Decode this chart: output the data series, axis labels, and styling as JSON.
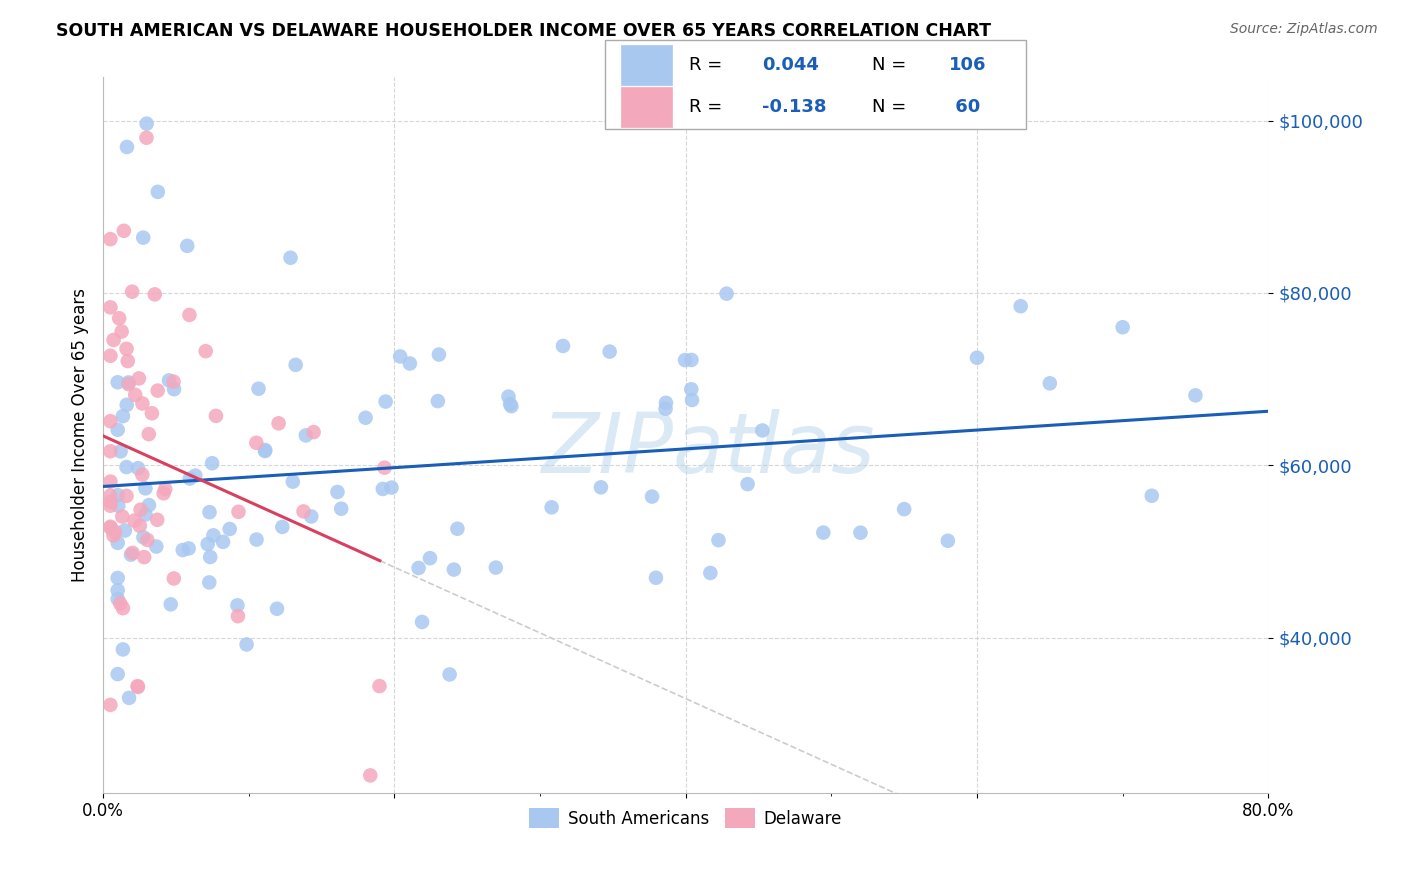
{
  "title": "SOUTH AMERICAN VS DELAWARE HOUSEHOLDER INCOME OVER 65 YEARS CORRELATION CHART",
  "source": "Source: ZipAtlas.com",
  "ylabel": "Householder Income Over 65 years",
  "xmin": 0.0,
  "xmax": 0.8,
  "ymin": 22000,
  "ymax": 105000,
  "yticks": [
    40000,
    60000,
    80000,
    100000
  ],
  "ytick_labels": [
    "$40,000",
    "$60,000",
    "$80,000",
    "$100,000"
  ],
  "xticks": [
    0.0,
    0.2,
    0.4,
    0.6,
    0.8
  ],
  "xtick_labels": [
    "0.0%",
    "",
    "",
    "",
    "80.0%"
  ],
  "blue_color": "#A8C8F0",
  "pink_color": "#F4A8BC",
  "blue_line_color": "#1A5EB8",
  "pink_line_color": "#D94060",
  "pink_line_dashed_color": "#CCCCCC",
  "R_blue": 0.044,
  "N_blue": 106,
  "R_pink": -0.138,
  "N_pink": 60,
  "watermark": "ZIPatlas",
  "background_color": "#FFFFFF",
  "grid_color": "#CCCCCC"
}
